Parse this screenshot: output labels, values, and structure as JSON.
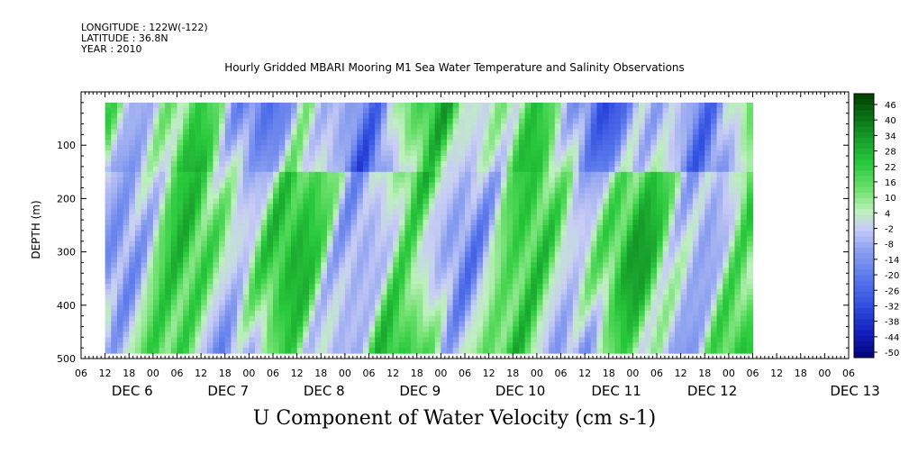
{
  "header": {
    "longitude": "LONGITUDE : 122W(-122)",
    "latitude": "LATITUDE : 36.8N",
    "year": "YEAR : 2010"
  },
  "chart_data": {
    "type": "heatmap",
    "title": "Hourly Gridded MBARI Mooring M1 Sea Water Temperature and Salinity Observations",
    "xlabel": "U Component of Water Velocity (cm s-1)",
    "ylabel": "DEPTH (m)",
    "ylim": [
      500,
      0
    ],
    "yticks": [
      100,
      200,
      300,
      400,
      500
    ],
    "xticks_hours": [
      "06",
      "12",
      "18",
      "00",
      "06",
      "12",
      "18",
      "00",
      "06",
      "12",
      "18",
      "00",
      "06",
      "12",
      "18",
      "00",
      "06",
      "12",
      "18",
      "00",
      "06",
      "12",
      "18",
      "00",
      "06",
      "12",
      "18",
      "00",
      "06",
      "12",
      "18",
      "00",
      "06"
    ],
    "date_labels": [
      "DEC 6",
      "DEC 7",
      "DEC 8",
      "DEC 9",
      "DEC 10",
      "DEC 11",
      "DEC 12",
      "DEC 13"
    ],
    "data_x_range_hours": [
      12,
      174
    ],
    "data_y_range_m": [
      20,
      490
    ],
    "colorbar_levels": [
      "46",
      "40",
      "34",
      "28",
      "22",
      "16",
      "10",
      "4",
      "-2",
      "-8",
      "-14",
      "-20",
      "-26",
      "-32",
      "-38",
      "-44",
      "-50"
    ],
    "color_low": "#000080",
    "color_mid": "#f0f0f0",
    "color_high": "#004d00"
  }
}
